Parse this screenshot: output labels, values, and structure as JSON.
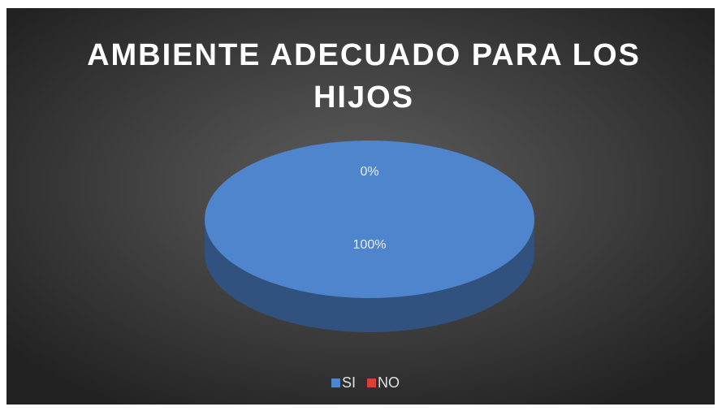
{
  "chart_data": {
    "type": "pie",
    "title": "AMBIENTE ADECUADO PARA LOS HIJOS",
    "categories": [
      "SI",
      "NO"
    ],
    "values": [
      100,
      0
    ],
    "value_labels": [
      "100%",
      "0%"
    ],
    "colors": [
      "#4f85cc",
      "#d9403c"
    ],
    "legend": "bottom"
  }
}
